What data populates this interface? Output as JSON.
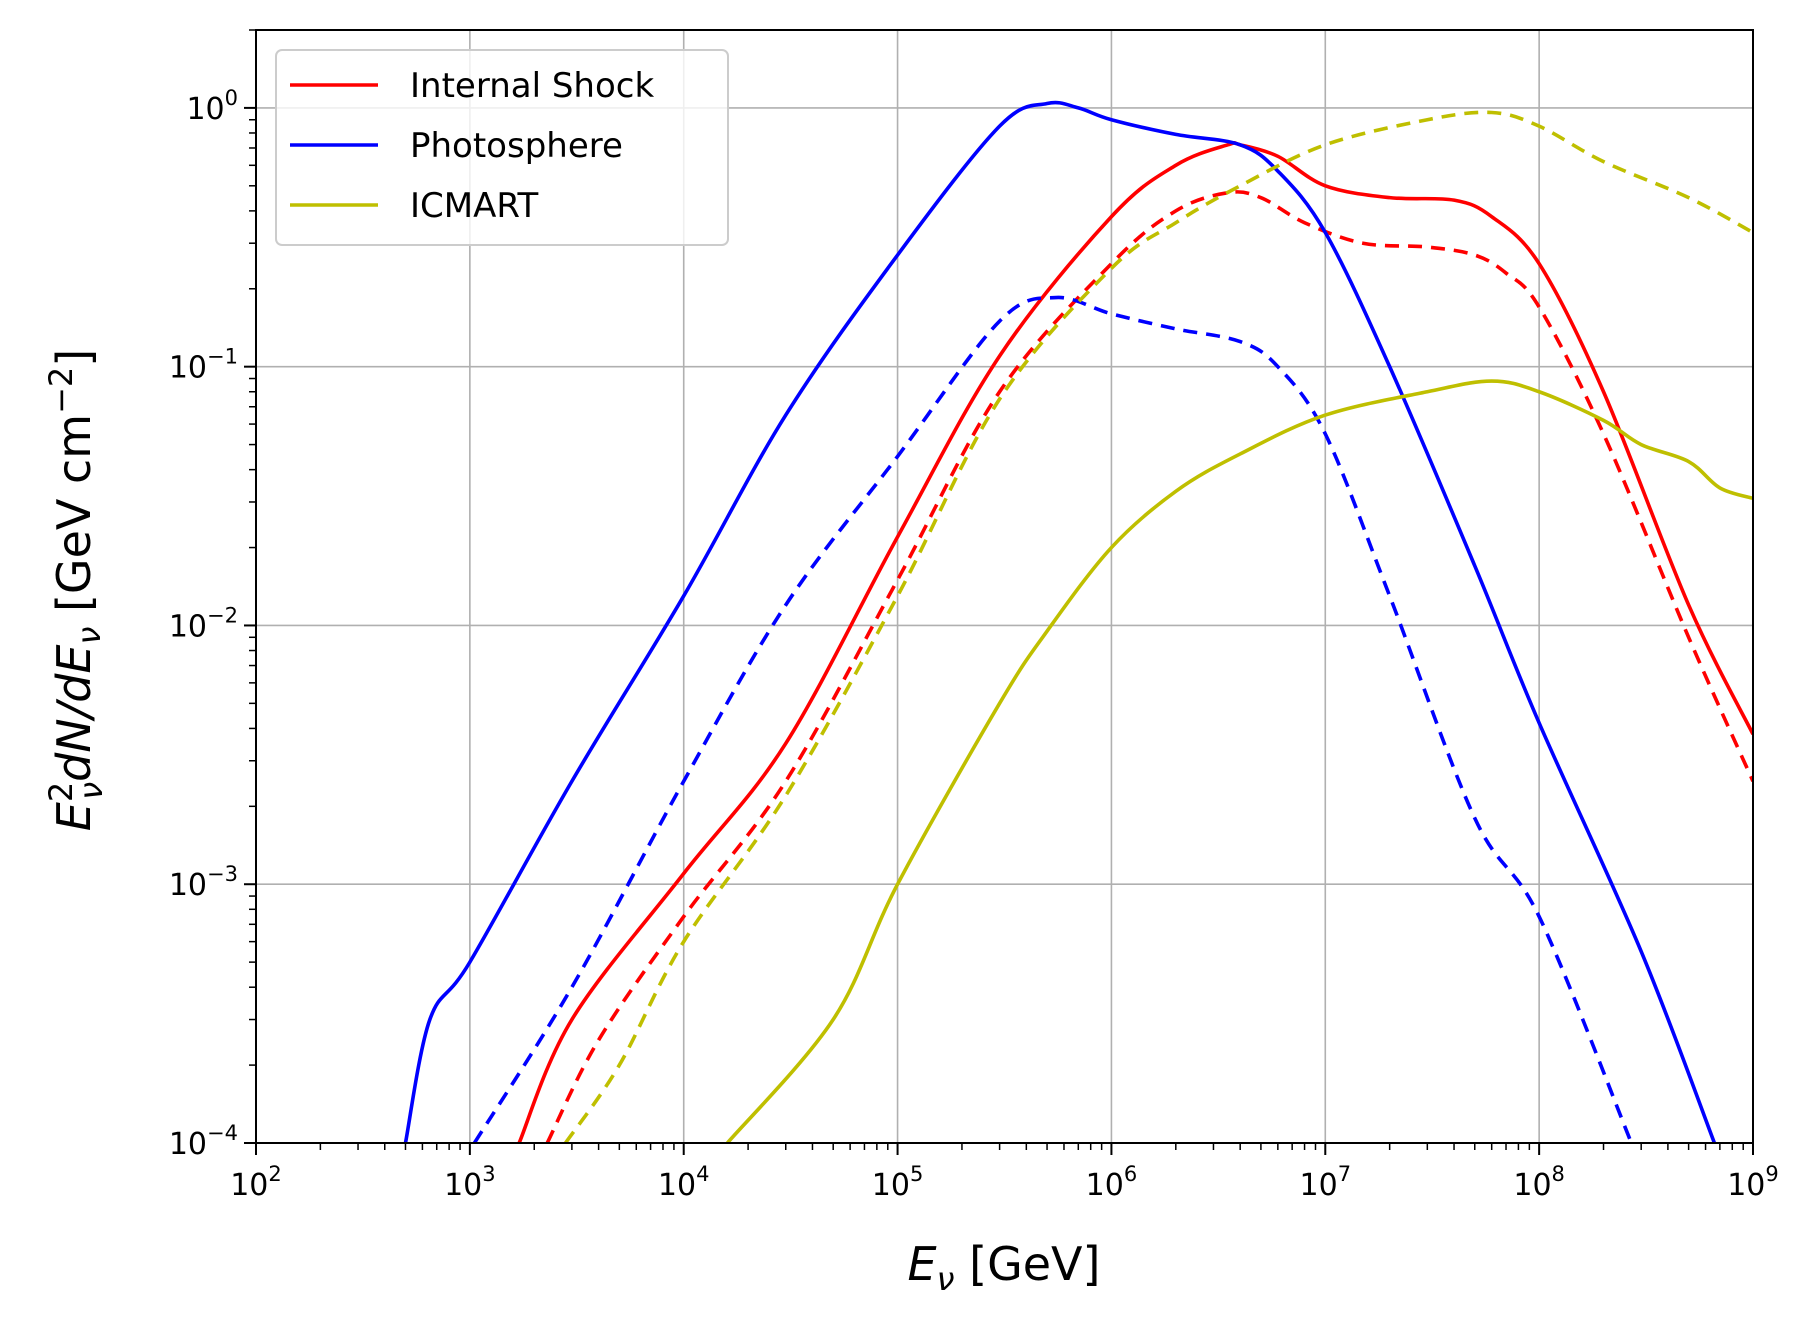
{
  "chart_data": {
    "type": "line",
    "title": "",
    "xscale": "log",
    "yscale": "log",
    "xlim": [
      100,
      1000000000
    ],
    "ylim": [
      0.0001,
      2
    ],
    "grid": true,
    "legend_position": "top-left",
    "xlabel": {
      "main": "E",
      "sub": "ν",
      "unit": " [GeV]"
    },
    "ylabel": {
      "main": "E",
      "sup": "2",
      "sub": "ν",
      "mid": "dN/dE",
      "sub2": "ν",
      "unit_pre": " [GeV cm",
      "unit_exp": "−2",
      "unit_post": "]"
    },
    "x_ticks": [
      {
        "base": "10",
        "exp": "2",
        "value": 100
      },
      {
        "base": "10",
        "exp": "3",
        "value": 1000
      },
      {
        "base": "10",
        "exp": "4",
        "value": 10000
      },
      {
        "base": "10",
        "exp": "5",
        "value": 100000
      },
      {
        "base": "10",
        "exp": "6",
        "value": 1000000
      },
      {
        "base": "10",
        "exp": "7",
        "value": 10000000
      },
      {
        "base": "10",
        "exp": "8",
        "value": 100000000
      },
      {
        "base": "10",
        "exp": "9",
        "value": 1000000000
      }
    ],
    "y_ticks": [
      {
        "base": "10",
        "exp": "−4",
        "value": 0.0001
      },
      {
        "base": "10",
        "exp": "−3",
        "value": 0.001
      },
      {
        "base": "10",
        "exp": "−2",
        "value": 0.01
      },
      {
        "base": "10",
        "exp": "−1",
        "value": 0.1
      },
      {
        "base": "10",
        "exp": "0",
        "value": 1
      }
    ],
    "legend": [
      {
        "label": "Internal Shock",
        "color": "#ff0000"
      },
      {
        "label": "Photosphere",
        "color": "#0000ff"
      },
      {
        "label": "ICMART",
        "color": "#bfbf00"
      }
    ],
    "series": [
      {
        "name": "Internal Shock (solid)",
        "color": "#ff0000",
        "style": "solid",
        "x": [
          1700,
          3000,
          10000,
          30000,
          100000,
          300000,
          1000000,
          2000000,
          3500000,
          4000000,
          6000000,
          10000000,
          20000000,
          40000000,
          60000000,
          100000000,
          200000000,
          500000000,
          1000000000
        ],
        "y": [
          0.0001,
          0.0003,
          0.0011,
          0.0035,
          0.022,
          0.11,
          0.38,
          0.6,
          0.72,
          0.72,
          0.65,
          0.5,
          0.45,
          0.44,
          0.38,
          0.25,
          0.08,
          0.012,
          0.0038
        ]
      },
      {
        "name": "Internal Shock (dashed)",
        "color": "#ff0000",
        "style": "dashed",
        "x": [
          2300,
          4000,
          10000,
          30000,
          100000,
          300000,
          1000000,
          2000000,
          3500000,
          5000000,
          8000000,
          15000000,
          30000000,
          50000000,
          70000000,
          100000000,
          200000000,
          500000000,
          1000000000
        ],
        "y": [
          0.0001,
          0.00025,
          0.00075,
          0.0025,
          0.015,
          0.08,
          0.25,
          0.4,
          0.47,
          0.45,
          0.36,
          0.3,
          0.29,
          0.27,
          0.23,
          0.17,
          0.055,
          0.009,
          0.0025
        ]
      },
      {
        "name": "Photosphere (solid)",
        "color": "#0000ff",
        "style": "solid",
        "x": [
          500,
          650,
          1000,
          3000,
          10000,
          30000,
          100000,
          300000,
          500000,
          700000,
          1000000,
          2000000,
          4000000,
          6000000,
          10000000,
          20000000,
          50000000,
          100000000,
          300000000,
          660000000
        ],
        "y": [
          0.0001,
          0.0003,
          0.0005,
          0.0025,
          0.013,
          0.065,
          0.27,
          0.85,
          1.04,
          1.0,
          0.9,
          0.79,
          0.72,
          0.57,
          0.33,
          0.1,
          0.017,
          0.0042,
          0.00055,
          0.0001
        ]
      },
      {
        "name": "Photosphere (dashed)",
        "color": "#0000ff",
        "style": "dashed",
        "x": [
          1050,
          3000,
          10000,
          30000,
          100000,
          300000,
          550000,
          1000000,
          2000000,
          4000000,
          6000000,
          10000000,
          20000000,
          50000000,
          100000000,
          270000000
        ],
        "y": [
          0.0001,
          0.0004,
          0.0025,
          0.012,
          0.045,
          0.15,
          0.185,
          0.16,
          0.14,
          0.125,
          0.1,
          0.055,
          0.013,
          0.0018,
          0.00075,
          0.0001
        ]
      },
      {
        "name": "ICMART (solid)",
        "color": "#bfbf00",
        "style": "solid",
        "x": [
          16000,
          50000,
          100000,
          300000,
          500000,
          1000000,
          2000000,
          4000000,
          10000000,
          30000000,
          60000000,
          100000000,
          200000000,
          300000000,
          500000000,
          700000000,
          1000000000
        ],
        "y": [
          0.0001,
          0.0003,
          0.001,
          0.005,
          0.0095,
          0.02,
          0.033,
          0.046,
          0.065,
          0.08,
          0.088,
          0.08,
          0.062,
          0.05,
          0.043,
          0.034,
          0.031
        ]
      },
      {
        "name": "ICMART (dashed)",
        "color": "#bfbf00",
        "style": "dashed",
        "x": [
          2800,
          5000,
          10000,
          30000,
          100000,
          300000,
          1000000,
          2000000,
          4000000,
          10000000,
          30000000,
          60000000,
          100000000,
          200000000,
          500000000,
          1000000000
        ],
        "y": [
          0.0001,
          0.0002,
          0.0006,
          0.0022,
          0.013,
          0.075,
          0.24,
          0.36,
          0.5,
          0.72,
          0.9,
          0.96,
          0.85,
          0.62,
          0.45,
          0.33
        ]
      }
    ]
  }
}
